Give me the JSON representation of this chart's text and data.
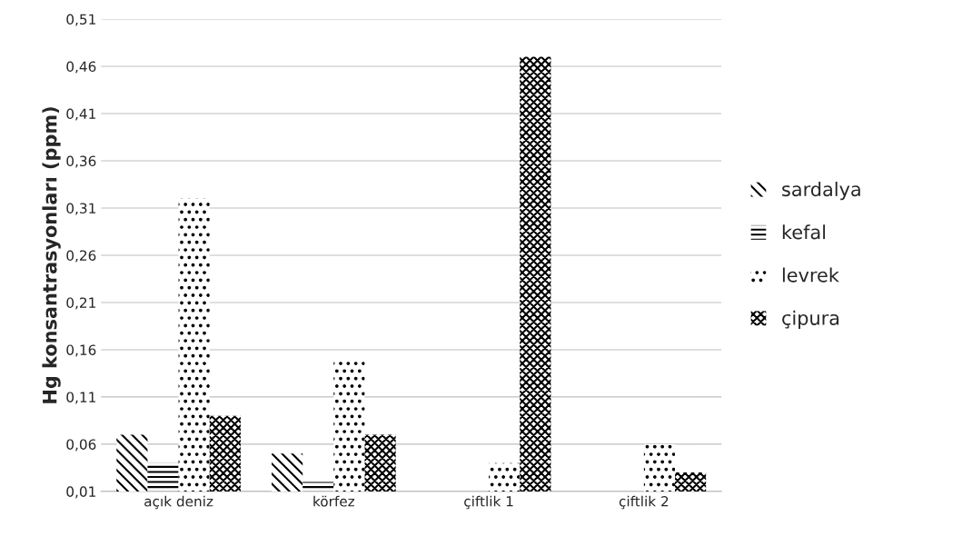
{
  "chart_data": {
    "type": "bar",
    "ylabel": "Hg konsantrasyonları (ppm)",
    "categories": [
      "açık deniz",
      "körfez",
      "çiftlik 1",
      "çiftlik 2"
    ],
    "series": [
      {
        "name": "sardalya",
        "color": "#000000",
        "values": [
          0.07,
          0.05,
          null,
          null
        ]
      },
      {
        "name": "kefal",
        "color": "#000000",
        "values": [
          0.04,
          0.02,
          null,
          null
        ]
      },
      {
        "name": "levrek",
        "color": "#000000",
        "values": [
          0.32,
          0.15,
          0.04,
          0.06
        ]
      },
      {
        "name": "çipura",
        "color": "#000000",
        "values": [
          0.09,
          0.07,
          0.47,
          0.03
        ]
      }
    ],
    "ylim": [
      0.01,
      0.51
    ],
    "yticks": [
      {
        "value": 0.01,
        "label": "0,01"
      },
      {
        "value": 0.06,
        "label": "0,06"
      },
      {
        "value": 0.11,
        "label": "0,11"
      },
      {
        "value": 0.16,
        "label": "0,16"
      },
      {
        "value": 0.21,
        "label": "0,21"
      },
      {
        "value": 0.26,
        "label": "0,26"
      },
      {
        "value": 0.31,
        "label": "0,31"
      },
      {
        "value": 0.36,
        "label": "0,36"
      },
      {
        "value": 0.41,
        "label": "0,41"
      },
      {
        "value": 0.46,
        "label": "0,46"
      },
      {
        "value": 0.51,
        "label": "0,51"
      }
    ],
    "grid": "y",
    "legend": "right"
  }
}
